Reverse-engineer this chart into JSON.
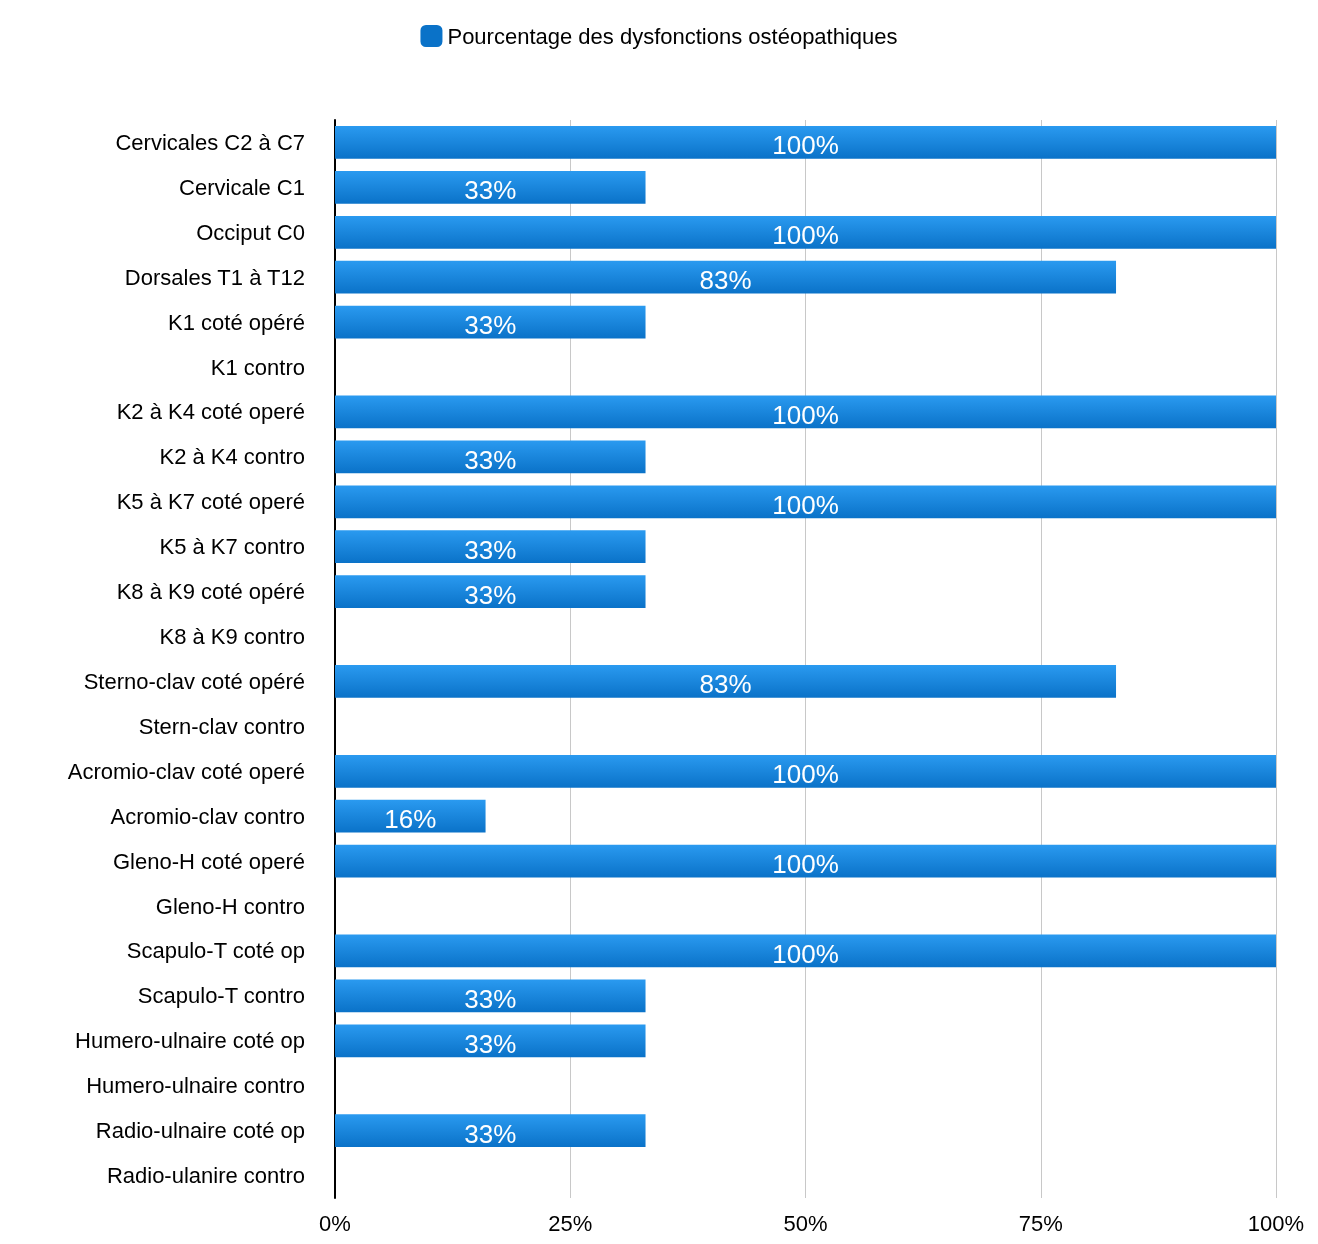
{
  "chart_data": {
    "type": "bar",
    "orientation": "horizontal",
    "legend": "top",
    "categories": [
      "Cervicales C2 à C7",
      "Cervicale C1",
      "Occiput C0",
      "Dorsales T1 à T12",
      "K1 coté opéré",
      "K1 contro",
      "K2 à K4 coté operé",
      "K2 à K4 contro",
      "K5 à K7 coté operé",
      "K5 à K7 contro",
      "K8 à K9 coté opéré",
      "K8 à K9 contro",
      "Sterno-clav coté opéré",
      "Stern-clav contro",
      "Acromio-clav coté operé",
      "Acromio-clav contro",
      "Gleno-H coté operé",
      "Gleno-H contro",
      "Scapulo-T coté op",
      "Scapulo-T contro",
      "Humero-ulnaire coté op",
      "Humero-ulnaire contro",
      "Radio-ulnaire coté op",
      "Radio-ulanire contro"
    ],
    "series": [
      {
        "name": "Pourcentage des dysfonctions ostéopathiques",
        "color": "#0a72c8",
        "values": [
          100,
          33,
          100,
          83,
          33,
          0,
          100,
          33,
          100,
          33,
          33,
          0,
          83,
          0,
          100,
          16,
          100,
          0,
          100,
          33,
          33,
          0,
          33,
          0
        ],
        "value_labels": [
          "100%",
          "33%",
          "100%",
          "83%",
          "33%",
          null,
          "100%",
          "33%",
          "100%",
          "33%",
          "33%",
          null,
          "83%",
          null,
          "100%",
          "16%",
          "100%",
          null,
          "100%",
          "33%",
          "33%",
          null,
          "33%",
          null
        ]
      }
    ],
    "xlim": [
      0,
      100
    ],
    "xticks": [
      {
        "value": 0,
        "label": "0%"
      },
      {
        "value": 25,
        "label": "25%"
      },
      {
        "value": 50,
        "label": "50%"
      },
      {
        "value": 75,
        "label": "75%"
      },
      {
        "value": 100,
        "label": "100%"
      }
    ],
    "grid": "x"
  }
}
